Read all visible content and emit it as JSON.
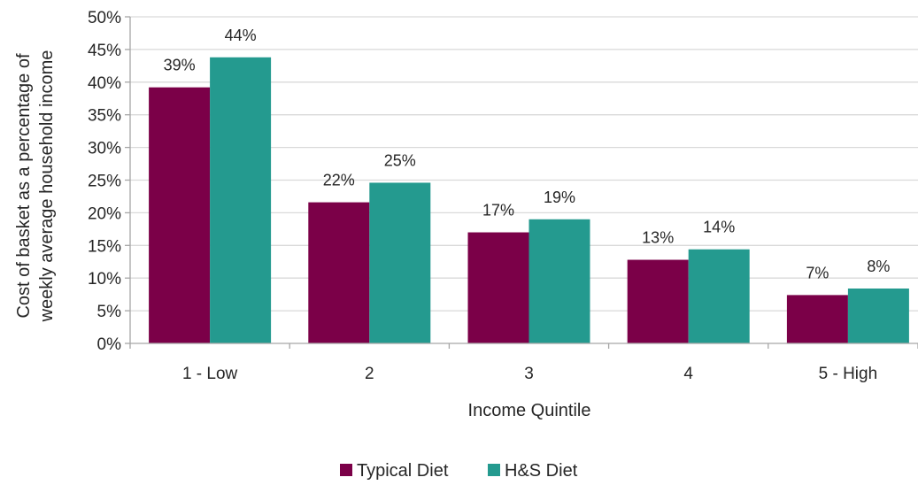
{
  "chart_data": {
    "type": "bar",
    "categories": [
      "1 - Low",
      "2",
      "3",
      "4",
      "5 - High"
    ],
    "series": [
      {
        "name": "Typical Diet",
        "values": [
          39.2,
          21.6,
          17.0,
          12.8,
          7.4
        ],
        "labels": [
          "39%",
          "22%",
          "17%",
          "13%",
          "7%"
        ],
        "color": "#7B0048"
      },
      {
        "name": "H&S Diet",
        "values": [
          43.8,
          24.6,
          19.0,
          14.4,
          8.4
        ],
        "labels": [
          "44%",
          "25%",
          "19%",
          "14%",
          "8%"
        ],
        "color": "#249A8F"
      }
    ],
    "xlabel": "Income Quintile",
    "ylabel": [
      "Cost of basket as a percentage of",
      "weekly average household income"
    ],
    "ylim": [
      0,
      50
    ],
    "ytick_step": 5,
    "ytick_suffix": "%",
    "grid": true,
    "grid_color": "#D9D9D9",
    "axis_color": "#A6A6A6",
    "legend_position": "bottom"
  }
}
